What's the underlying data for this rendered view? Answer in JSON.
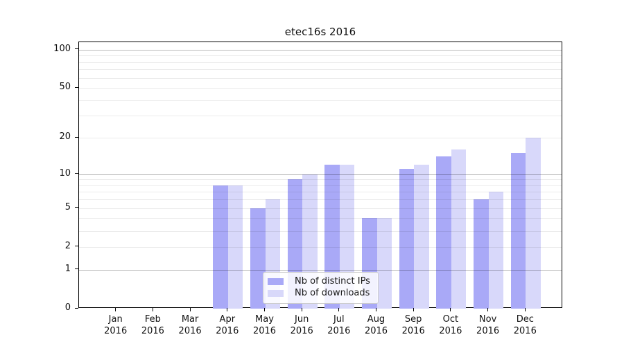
{
  "chart_data": {
    "type": "bar",
    "title": "etec16s 2016",
    "categories": [
      "Jan",
      "Feb",
      "Mar",
      "Apr",
      "May",
      "Jun",
      "Jul",
      "Aug",
      "Sep",
      "Oct",
      "Nov",
      "Dec"
    ],
    "category_year": "2016",
    "series": [
      {
        "name": "Nb of distinct IPs",
        "color": "#a9a9f7",
        "values": [
          0,
          0,
          0,
          8,
          5,
          9,
          12,
          4,
          11,
          14,
          6,
          15
        ]
      },
      {
        "name": "Nb of downloads",
        "color": "#d8d8fa",
        "values": [
          0,
          0,
          0,
          8,
          6,
          10,
          12,
          4,
          12,
          16,
          7,
          20
        ]
      }
    ],
    "yticks": [
      0,
      1,
      2,
      5,
      10,
      20,
      50,
      100
    ],
    "major_gridlines": [
      1,
      10,
      100
    ],
    "minor_gridlines": [
      2,
      3,
      4,
      5,
      6,
      7,
      8,
      9,
      20,
      30,
      40,
      50,
      60,
      70,
      80,
      90
    ],
    "scale": "log10(1+v)",
    "ylim": [
      0,
      114
    ],
    "xlabel": "",
    "ylabel": "",
    "grid": true,
    "legend_position": "lower-center",
    "axis_color": "#000000",
    "background": "#ffffff"
  }
}
